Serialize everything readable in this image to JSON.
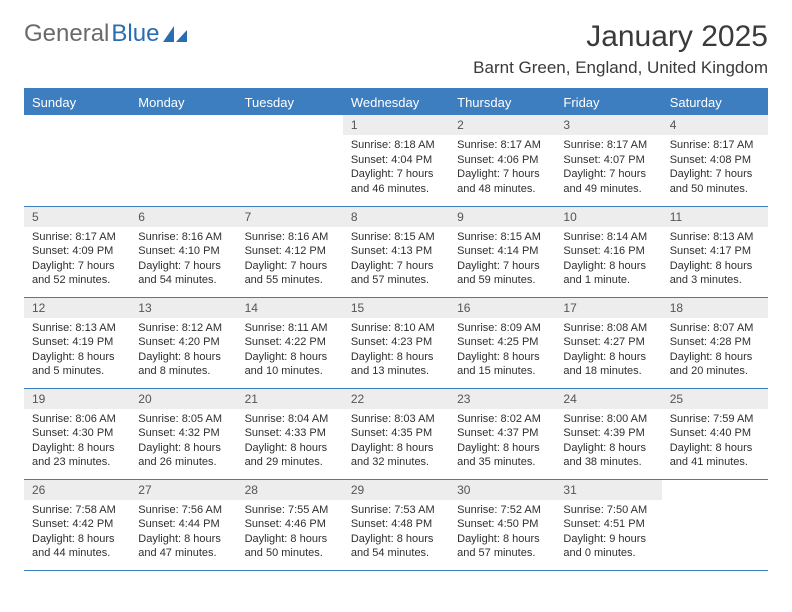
{
  "logo": {
    "text1": "General",
    "text2": "Blue"
  },
  "title": "January 2025",
  "location": "Barnt Green, England, United Kingdom",
  "colors": {
    "header_bg": "#3d7ec0",
    "header_text": "#ffffff",
    "daynum_bg": "#ededed",
    "body_text": "#2f2f2f",
    "rule": "#3d7ec0"
  },
  "weekdays": [
    "Sunday",
    "Monday",
    "Tuesday",
    "Wednesday",
    "Thursday",
    "Friday",
    "Saturday"
  ],
  "weeks": [
    [
      null,
      null,
      null,
      {
        "n": "1",
        "sr": "8:18 AM",
        "ss": "4:04 PM",
        "dl": "7 hours and 46 minutes."
      },
      {
        "n": "2",
        "sr": "8:17 AM",
        "ss": "4:06 PM",
        "dl": "7 hours and 48 minutes."
      },
      {
        "n": "3",
        "sr": "8:17 AM",
        "ss": "4:07 PM",
        "dl": "7 hours and 49 minutes."
      },
      {
        "n": "4",
        "sr": "8:17 AM",
        "ss": "4:08 PM",
        "dl": "7 hours and 50 minutes."
      }
    ],
    [
      {
        "n": "5",
        "sr": "8:17 AM",
        "ss": "4:09 PM",
        "dl": "7 hours and 52 minutes."
      },
      {
        "n": "6",
        "sr": "8:16 AM",
        "ss": "4:10 PM",
        "dl": "7 hours and 54 minutes."
      },
      {
        "n": "7",
        "sr": "8:16 AM",
        "ss": "4:12 PM",
        "dl": "7 hours and 55 minutes."
      },
      {
        "n": "8",
        "sr": "8:15 AM",
        "ss": "4:13 PM",
        "dl": "7 hours and 57 minutes."
      },
      {
        "n": "9",
        "sr": "8:15 AM",
        "ss": "4:14 PM",
        "dl": "7 hours and 59 minutes."
      },
      {
        "n": "10",
        "sr": "8:14 AM",
        "ss": "4:16 PM",
        "dl": "8 hours and 1 minute."
      },
      {
        "n": "11",
        "sr": "8:13 AM",
        "ss": "4:17 PM",
        "dl": "8 hours and 3 minutes."
      }
    ],
    [
      {
        "n": "12",
        "sr": "8:13 AM",
        "ss": "4:19 PM",
        "dl": "8 hours and 5 minutes."
      },
      {
        "n": "13",
        "sr": "8:12 AM",
        "ss": "4:20 PM",
        "dl": "8 hours and 8 minutes."
      },
      {
        "n": "14",
        "sr": "8:11 AM",
        "ss": "4:22 PM",
        "dl": "8 hours and 10 minutes."
      },
      {
        "n": "15",
        "sr": "8:10 AM",
        "ss": "4:23 PM",
        "dl": "8 hours and 13 minutes."
      },
      {
        "n": "16",
        "sr": "8:09 AM",
        "ss": "4:25 PM",
        "dl": "8 hours and 15 minutes."
      },
      {
        "n": "17",
        "sr": "8:08 AM",
        "ss": "4:27 PM",
        "dl": "8 hours and 18 minutes."
      },
      {
        "n": "18",
        "sr": "8:07 AM",
        "ss": "4:28 PM",
        "dl": "8 hours and 20 minutes."
      }
    ],
    [
      {
        "n": "19",
        "sr": "8:06 AM",
        "ss": "4:30 PM",
        "dl": "8 hours and 23 minutes."
      },
      {
        "n": "20",
        "sr": "8:05 AM",
        "ss": "4:32 PM",
        "dl": "8 hours and 26 minutes."
      },
      {
        "n": "21",
        "sr": "8:04 AM",
        "ss": "4:33 PM",
        "dl": "8 hours and 29 minutes."
      },
      {
        "n": "22",
        "sr": "8:03 AM",
        "ss": "4:35 PM",
        "dl": "8 hours and 32 minutes."
      },
      {
        "n": "23",
        "sr": "8:02 AM",
        "ss": "4:37 PM",
        "dl": "8 hours and 35 minutes."
      },
      {
        "n": "24",
        "sr": "8:00 AM",
        "ss": "4:39 PM",
        "dl": "8 hours and 38 minutes."
      },
      {
        "n": "25",
        "sr": "7:59 AM",
        "ss": "4:40 PM",
        "dl": "8 hours and 41 minutes."
      }
    ],
    [
      {
        "n": "26",
        "sr": "7:58 AM",
        "ss": "4:42 PM",
        "dl": "8 hours and 44 minutes."
      },
      {
        "n": "27",
        "sr": "7:56 AM",
        "ss": "4:44 PM",
        "dl": "8 hours and 47 minutes."
      },
      {
        "n": "28",
        "sr": "7:55 AM",
        "ss": "4:46 PM",
        "dl": "8 hours and 50 minutes."
      },
      {
        "n": "29",
        "sr": "7:53 AM",
        "ss": "4:48 PM",
        "dl": "8 hours and 54 minutes."
      },
      {
        "n": "30",
        "sr": "7:52 AM",
        "ss": "4:50 PM",
        "dl": "8 hours and 57 minutes."
      },
      {
        "n": "31",
        "sr": "7:50 AM",
        "ss": "4:51 PM",
        "dl": "9 hours and 0 minutes."
      },
      null
    ]
  ],
  "labels": {
    "sunrise": "Sunrise: ",
    "sunset": "Sunset: ",
    "daylight": "Daylight: "
  }
}
